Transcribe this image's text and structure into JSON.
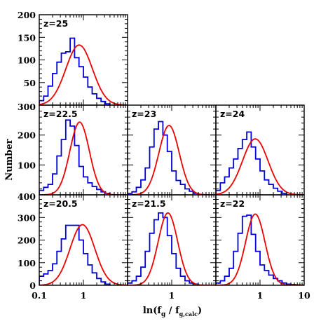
{
  "chart_data": {
    "type": "histogram-grid",
    "xlabel": "ln(f",
    "xlabel_sub1": "g",
    "xlabel_mid": " / f",
    "xlabel_sub2": "g,calc",
    "xlabel_end": ")",
    "ylabel": "Number",
    "xscale": "log",
    "xlim": [
      0.1,
      10
    ],
    "x_tick_labels": [
      "0.1",
      "1",
      "10"
    ],
    "rows": [
      {
        "ylim": [
          0,
          200
        ],
        "y_ticks": [
          50,
          100,
          150,
          200
        ],
        "y_tick_labels": [
          "50",
          "100",
          "150",
          "200"
        ],
        "panels": [
          {
            "label": "z=25",
            "bin_edges": [
              0.1,
              0.126,
              0.158,
              0.2,
              0.251,
              0.316,
              0.398,
              0.501,
              0.631,
              0.794,
              1.0,
              1.26,
              1.58,
              2.0,
              2.51,
              3.16,
              3.98
            ],
            "counts": [
              10,
              20,
              42,
              70,
              95,
              115,
              118,
              148,
              105,
              85,
              62,
              40,
              25,
              15,
              8,
              3
            ],
            "fit": {
              "amplitude": 133,
              "mu": 0.8,
              "sigma_dex": 0.3
            }
          }
        ]
      },
      {
        "ylim": [
          0,
          300
        ],
        "y_ticks": [
          100,
          200,
          300
        ],
        "y_tick_labels": [
          "100",
          "200",
          "300"
        ],
        "panels": [
          {
            "label": "z=22.5",
            "bin_edges": [
              0.1,
              0.126,
              0.158,
              0.2,
              0.251,
              0.316,
              0.398,
              0.501,
              0.631,
              0.794,
              1.0,
              1.26,
              1.58,
              2.0,
              2.51,
              3.16,
              3.98
            ],
            "counts": [
              15,
              25,
              35,
              70,
              130,
              185,
              250,
              230,
              165,
              95,
              60,
              40,
              28,
              18,
              10,
              5
            ],
            "fit": {
              "amplitude": 243,
              "mu": 0.82,
              "sigma_dex": 0.22
            }
          },
          {
            "label": "z=23",
            "bin_edges": [
              0.1,
              0.126,
              0.158,
              0.2,
              0.251,
              0.316,
              0.398,
              0.501,
              0.631,
              0.794,
              1.0,
              1.26,
              1.58,
              2.0,
              2.51,
              3.16,
              3.98
            ],
            "counts": [
              5,
              10,
              25,
              50,
              90,
              160,
              220,
              245,
              200,
              145,
              80,
              48,
              35,
              20,
              12,
              5
            ],
            "fit": {
              "amplitude": 232,
              "mu": 0.87,
              "sigma_dex": 0.23
            }
          },
          {
            "label": "z=24",
            "bin_edges": [
              0.1,
              0.126,
              0.158,
              0.2,
              0.251,
              0.316,
              0.398,
              0.501,
              0.631,
              0.794,
              1.0,
              1.26,
              1.58,
              2.0,
              2.51,
              3.16,
              3.98
            ],
            "counts": [
              15,
              40,
              60,
              90,
              120,
              155,
              185,
              210,
              160,
              120,
              80,
              50,
              35,
              22,
              12,
              5
            ],
            "fit": {
              "amplitude": 187,
              "mu": 0.78,
              "sigma_dex": 0.29
            }
          }
        ]
      },
      {
        "ylim": [
          0,
          400
        ],
        "y_ticks": [
          0,
          100,
          200,
          300,
          400
        ],
        "y_tick_labels": [
          "0",
          "100",
          "200",
          "300",
          "400"
        ],
        "panels": [
          {
            "label": "z=20.5",
            "bin_edges": [
              0.1,
              0.126,
              0.158,
              0.2,
              0.251,
              0.316,
              0.398,
              0.501,
              0.631,
              0.794,
              1.0,
              1.26,
              1.58,
              2.0,
              2.51,
              3.16,
              3.98
            ],
            "counts": [
              40,
              50,
              65,
              95,
              150,
              205,
              265,
              265,
              265,
              200,
              140,
              90,
              55,
              30,
              15,
              5
            ],
            "fit": {
              "amplitude": 268,
              "mu": 0.95,
              "sigma_dex": 0.28
            }
          },
          {
            "label": "z=21.5",
            "bin_edges": [
              0.1,
              0.126,
              0.158,
              0.2,
              0.251,
              0.316,
              0.398,
              0.501,
              0.631,
              0.794,
              1.0,
              1.26,
              1.58,
              2.0,
              2.51,
              3.16,
              3.98
            ],
            "counts": [
              10,
              20,
              40,
              80,
              150,
              230,
              290,
              320,
              300,
              220,
              140,
              75,
              40,
              20,
              10,
              5
            ],
            "fit": {
              "amplitude": 320,
              "mu": 0.82,
              "sigma_dex": 0.22
            }
          },
          {
            "label": "z=22",
            "bin_edges": [
              0.1,
              0.126,
              0.158,
              0.2,
              0.251,
              0.316,
              0.398,
              0.501,
              0.631,
              0.794,
              1.0,
              1.26,
              1.58,
              2.0,
              2.51,
              3.16,
              3.98,
              5.01,
              6.31,
              7.94,
              10.0
            ],
            "counts": [
              10,
              20,
              40,
              75,
              150,
              230,
              305,
              310,
              225,
              150,
              90,
              65,
              45,
              30,
              20,
              10,
              5,
              3,
              2,
              1
            ],
            "fit": {
              "amplitude": 315,
              "mu": 0.78,
              "sigma_dex": 0.22
            }
          }
        ]
      }
    ]
  }
}
